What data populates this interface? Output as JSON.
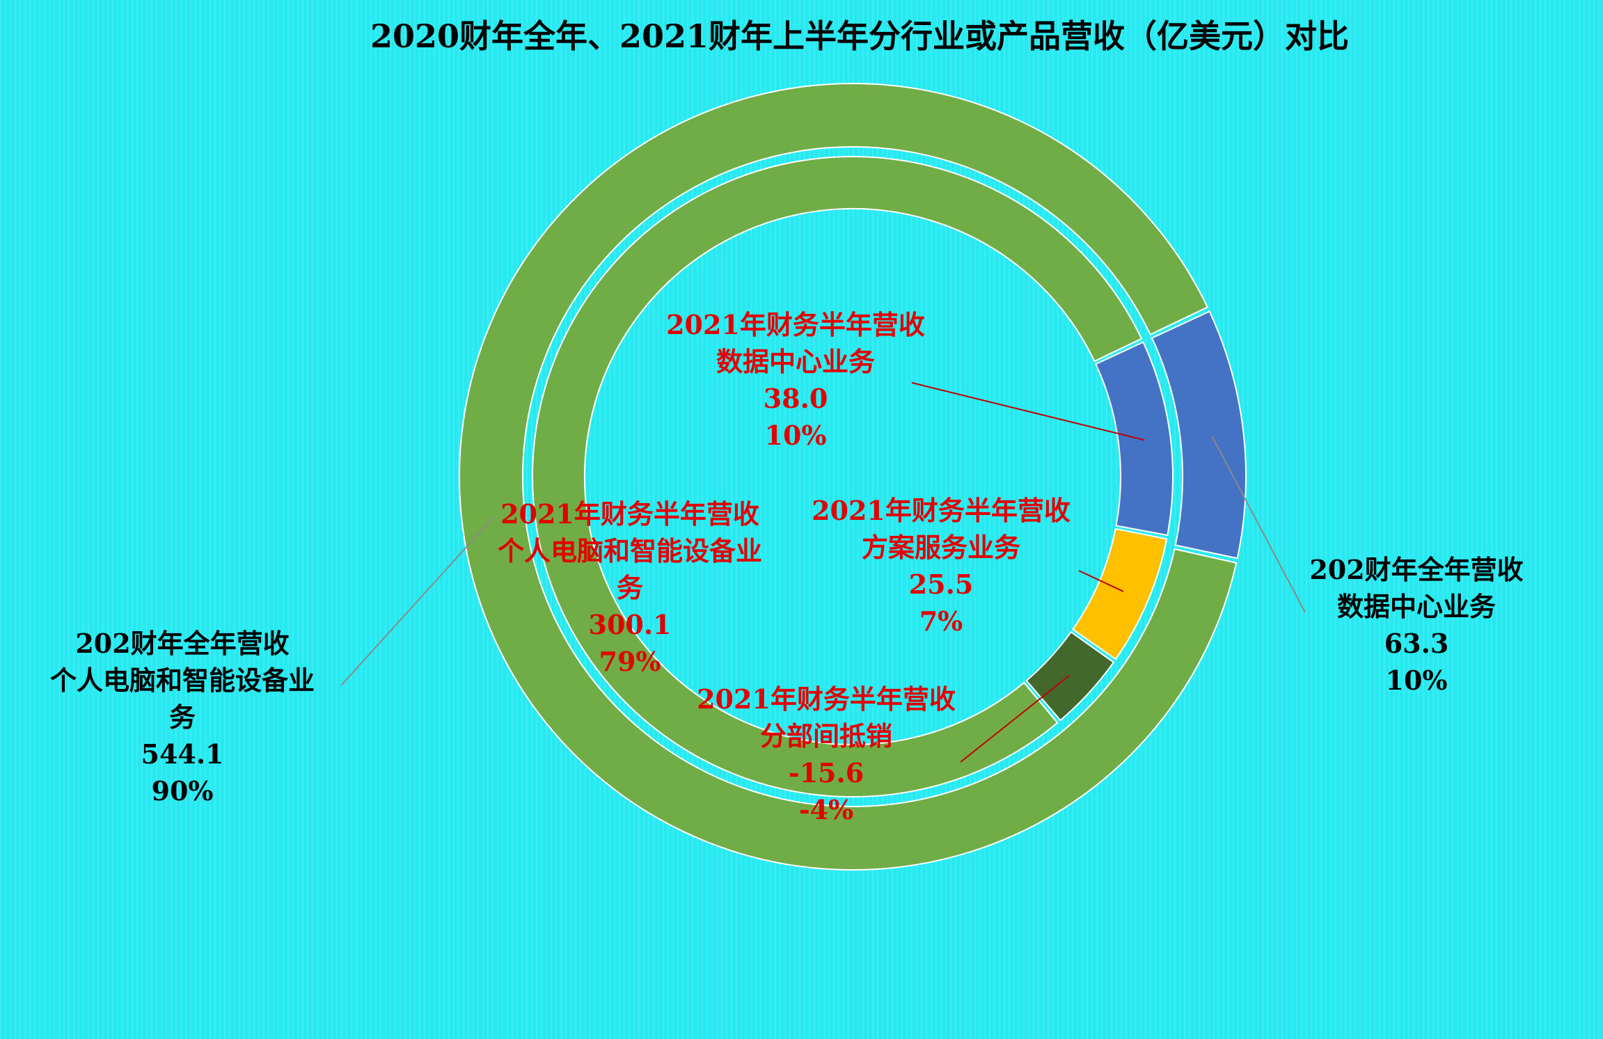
{
  "chart_data": {
    "type": "donut",
    "title": "2020财年全年、2021财年上半年分行业或产品营收（亿美元）对比",
    "outer_ring": {
      "series_name": "2020财年全年",
      "slices": [
        {
          "category_lines": [
            "202财年全年营收",
            "数据中心业务"
          ],
          "value": 63.3,
          "percent": "10%",
          "value_label": "63.3",
          "color": "#4472c4"
        },
        {
          "category_lines": [
            "202财年全年营收",
            "个人电脑和智能设备业",
            "务"
          ],
          "value": 544.1,
          "percent": "90%",
          "value_label": "544.1",
          "color": "#70ad47"
        }
      ]
    },
    "inner_ring": {
      "series_name": "2021财年上半年",
      "slices": [
        {
          "category_lines": [
            "2021年财务半年营收",
            "数据中心业务"
          ],
          "value": 38.0,
          "percent": "10%",
          "value_label": "38.0",
          "color": "#4472c4"
        },
        {
          "category_lines": [
            "2021年财务半年营收",
            "方案服务业务"
          ],
          "value": 25.5,
          "percent": "7%",
          "value_label": "25.5",
          "color": "#ffc000"
        },
        {
          "category_lines": [
            "2021年财务半年营收",
            "分部间抵销"
          ],
          "value": -15.6,
          "percent": "-4%",
          "value_label": "-15.6",
          "color": "#43682b"
        },
        {
          "category_lines": [
            "2021年财务半年营收",
            "个人电脑和智能设备业",
            "务"
          ],
          "value": 300.1,
          "percent": "79%",
          "value_label": "300.1",
          "color": "#70ad47"
        }
      ]
    },
    "outer_label_color": "#000000",
    "inner_label_color": "#e00000",
    "background_color": "#27eaf0"
  }
}
